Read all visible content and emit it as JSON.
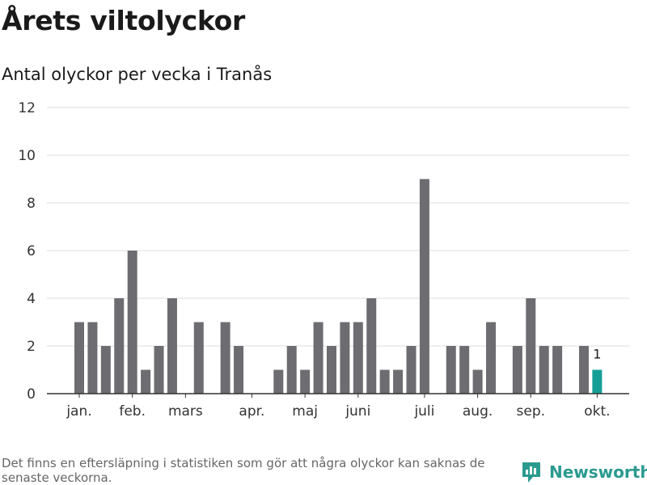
{
  "header": {
    "title": "Årets viltolyckor",
    "subtitle": "Antal olyckor per vecka i Tranås"
  },
  "chart_data": {
    "type": "bar",
    "title": "Årets viltolyckor",
    "subtitle": "Antal olyckor per vecka i Tranås",
    "xlabel": "",
    "ylabel": "",
    "ylim": [
      0,
      12
    ],
    "yticks": [
      0,
      2,
      4,
      6,
      8,
      10,
      12
    ],
    "grid": true,
    "week_values": [
      3,
      3,
      2,
      4,
      6,
      1,
      2,
      4,
      0,
      3,
      0,
      3,
      2,
      0,
      0,
      1,
      2,
      1,
      3,
      2,
      3,
      3,
      4,
      1,
      1,
      2,
      9,
      0,
      2,
      2,
      1,
      3,
      0,
      2,
      4,
      2,
      2,
      0,
      2,
      1
    ],
    "highlight_index": 39,
    "highlight_label": "1",
    "month_labels": [
      {
        "label": "jan.",
        "week_index": 0
      },
      {
        "label": "feb.",
        "week_index": 4
      },
      {
        "label": "mars",
        "week_index": 8
      },
      {
        "label": "apr.",
        "week_index": 13
      },
      {
        "label": "maj",
        "week_index": 17
      },
      {
        "label": "juni",
        "week_index": 21
      },
      {
        "label": "juli",
        "week_index": 26
      },
      {
        "label": "aug.",
        "week_index": 30
      },
      {
        "label": "sep.",
        "week_index": 34
      },
      {
        "label": "okt.",
        "week_index": 39
      }
    ],
    "colors": {
      "bar": "#6d6c71",
      "highlight": "#159e95",
      "grid": "#dddddd",
      "axis": "#333333"
    }
  },
  "footer": {
    "note": "Det finns en eftersläpning i statistiken som gör att några olyckor kan saknas de senaste veckorna.",
    "brand": "Newsworthy"
  }
}
